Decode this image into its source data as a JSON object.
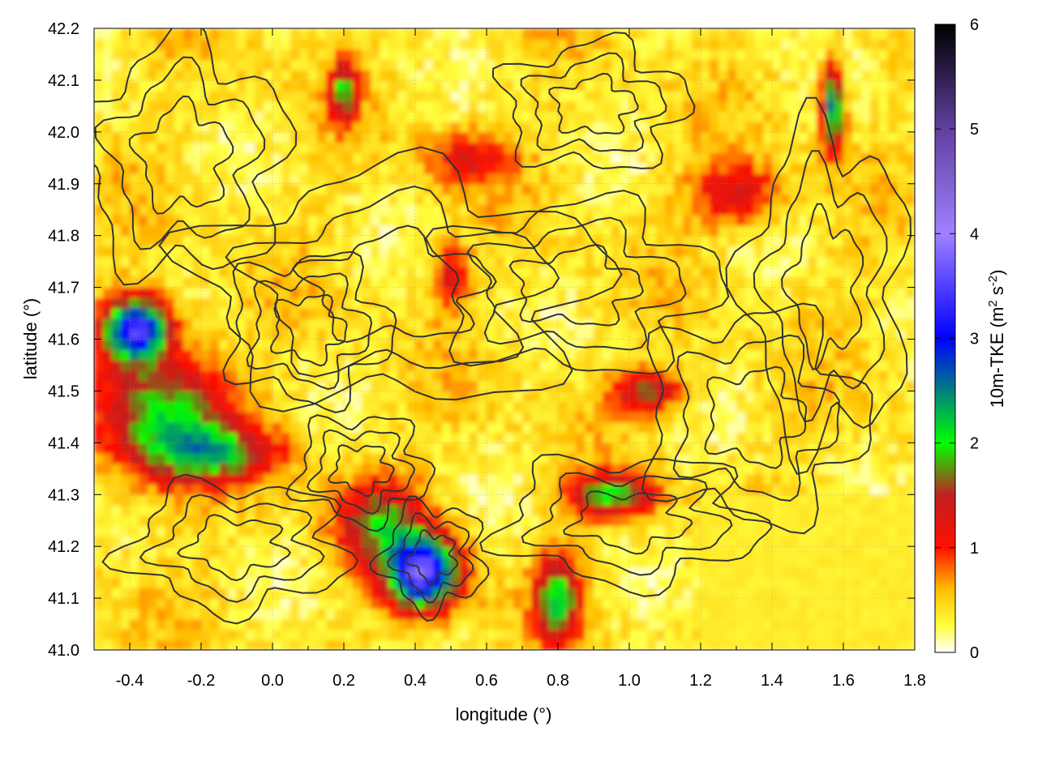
{
  "chart_data": {
    "type": "heatmap",
    "title": "",
    "xlabel": "longitude (°)",
    "ylabel": "latitude (°)",
    "colorbar_label_parts": [
      "10m-TKE (m",
      "2",
      " s",
      "-2",
      ")"
    ],
    "xlim": [
      -0.5,
      1.8
    ],
    "ylim": [
      41.0,
      42.2
    ],
    "x_ticks": [
      -0.4,
      -0.2,
      0.0,
      0.2,
      0.4,
      0.6,
      0.8,
      1.0,
      1.2,
      1.4,
      1.6,
      1.8
    ],
    "x_tick_labels": [
      "-0.4",
      "-0.2",
      "0.0",
      "0.2",
      "0.4",
      "0.6",
      "0.8",
      "1.0",
      "1.2",
      "1.4",
      "1.6",
      "1.8"
    ],
    "y_ticks": [
      41.0,
      41.1,
      41.2,
      41.3,
      41.4,
      41.5,
      41.6,
      41.7,
      41.8,
      41.9,
      42.0,
      42.1,
      42.2
    ],
    "y_tick_labels": [
      "41.0",
      "41.1",
      "41.2",
      "41.3",
      "41.4",
      "41.5",
      "41.6",
      "41.7",
      "41.8",
      "41.9",
      "42.0",
      "42.1",
      "42.2"
    ],
    "colorbar_range": [
      0,
      6
    ],
    "colorbar_ticks": [
      0,
      1,
      2,
      3,
      4,
      5,
      6
    ],
    "colorbar_tick_labels": [
      "0",
      "1",
      "2",
      "3",
      "4",
      "5",
      "6"
    ],
    "colorscale": [
      {
        "v": 0.0,
        "color": "#ffffff"
      },
      {
        "v": 0.25,
        "color": "#ffff40"
      },
      {
        "v": 0.6,
        "color": "#ffbf00"
      },
      {
        "v": 1.0,
        "color": "#ff1000"
      },
      {
        "v": 1.5,
        "color": "#c02020"
      },
      {
        "v": 2.0,
        "color": "#00ff00"
      },
      {
        "v": 3.0,
        "color": "#0000ff"
      },
      {
        "v": 4.0,
        "color": "#a080ff"
      },
      {
        "v": 5.0,
        "color": "#6040a0"
      },
      {
        "v": 6.0,
        "color": "#000000"
      }
    ],
    "grid": true,
    "hotspots": [
      {
        "lon": -0.38,
        "lat": 41.62,
        "tke": 3.0,
        "slon": 0.09,
        "slat": 0.06
      },
      {
        "lon": -0.3,
        "lat": 41.45,
        "tke": 1.6,
        "slon": 0.18,
        "slat": 0.12
      },
      {
        "lon": -0.15,
        "lat": 41.38,
        "tke": 1.2,
        "slon": 0.18,
        "slat": 0.05
      },
      {
        "lon": 0.42,
        "lat": 41.15,
        "tke": 3.2,
        "slon": 0.1,
        "slat": 0.07
      },
      {
        "lon": 0.3,
        "lat": 41.25,
        "tke": 1.3,
        "slon": 0.12,
        "slat": 0.08
      },
      {
        "lon": 0.8,
        "lat": 41.1,
        "tke": 1.8,
        "slon": 0.06,
        "slat": 0.08
      },
      {
        "lon": 0.95,
        "lat": 41.3,
        "tke": 1.5,
        "slon": 0.12,
        "slat": 0.04
      },
      {
        "lon": 1.3,
        "lat": 41.88,
        "tke": 1.0,
        "slon": 0.12,
        "slat": 0.06
      },
      {
        "lon": 0.2,
        "lat": 42.08,
        "tke": 1.5,
        "slon": 0.04,
        "slat": 0.06
      },
      {
        "lon": 1.57,
        "lat": 42.05,
        "tke": 2.2,
        "slon": 0.03,
        "slat": 0.08
      },
      {
        "lon": 1.05,
        "lat": 41.5,
        "tke": 1.2,
        "slon": 0.1,
        "slat": 0.04
      },
      {
        "lon": 0.5,
        "lat": 41.72,
        "tke": 0.9,
        "slon": 0.05,
        "slat": 0.06
      },
      {
        "lon": 0.55,
        "lat": 41.95,
        "tke": 0.8,
        "slon": 0.12,
        "slat": 0.05
      }
    ]
  }
}
